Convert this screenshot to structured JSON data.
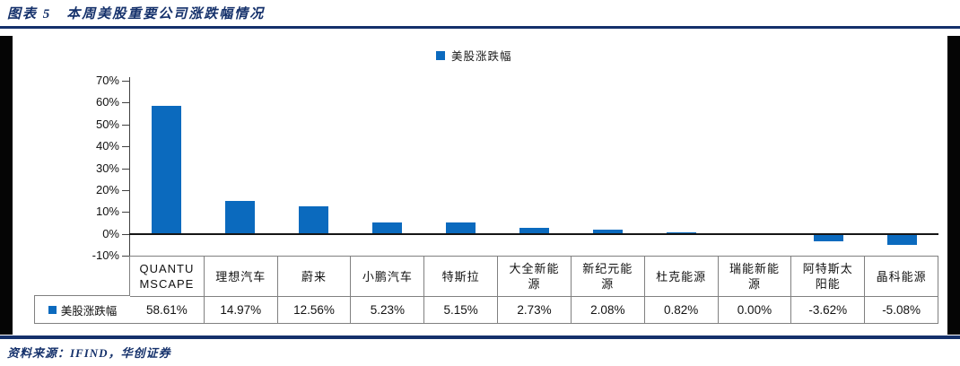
{
  "header": {
    "title": "图表 5　本周美股重要公司涨跌幅情况"
  },
  "chart_data": {
    "type": "bar",
    "title": "本周美股重要公司涨跌幅情况",
    "legend_position": "top-center",
    "grid": false,
    "categories": [
      "QUANTUMSCAPE",
      "理想汽车",
      "蔚来",
      "小鹏汽车",
      "特斯拉",
      "大全新能源",
      "新纪元能源",
      "杜克能源",
      "瑞能新能源",
      "阿特斯太阳能",
      "晶科能源"
    ],
    "series": [
      {
        "name": "美股涨跌幅",
        "values": [
          58.61,
          14.97,
          12.56,
          5.23,
          5.15,
          2.73,
          2.08,
          0.82,
          0.0,
          -3.62,
          -5.08
        ]
      }
    ],
    "value_labels": [
      "58.61%",
      "14.97%",
      "12.56%",
      "5.23%",
      "5.15%",
      "2.73%",
      "2.08%",
      "0.82%",
      "0.00%",
      "-3.62%",
      "-5.08%"
    ],
    "ylim": [
      -10,
      70
    ],
    "ytick_step": 10,
    "ytick_labels": [
      "70%",
      "60%",
      "50%",
      "40%",
      "30%",
      "20%",
      "10%",
      "0%",
      "-10%"
    ],
    "bar_color": "#0B6ABE",
    "data_table_shown": true
  },
  "footer": {
    "source": "资料来源：IFIND，华创证券"
  },
  "colors": {
    "accent_navy": "#15316B",
    "bar_blue": "#0B6ABE",
    "table_border": "#808080",
    "frame_black": "#050505",
    "axis_black": "#161616"
  }
}
